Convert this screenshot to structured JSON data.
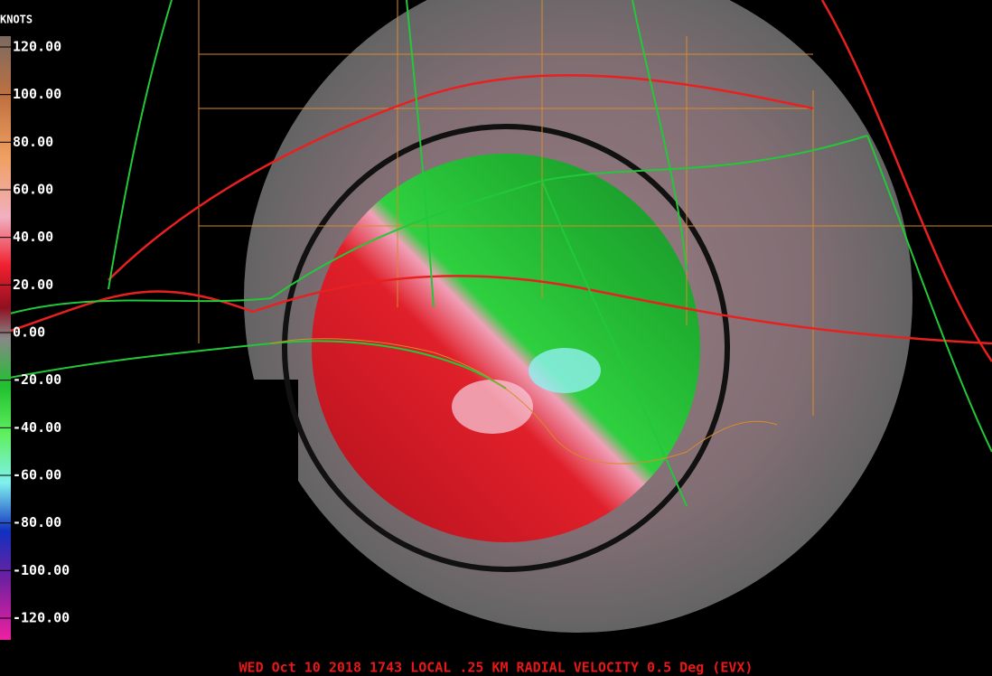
{
  "legend": {
    "unit": "KNOTS",
    "ticks": [
      {
        "value": 120,
        "label": "120.00"
      },
      {
        "value": 100,
        "label": "100.00"
      },
      {
        "value": 80,
        "label": "80.00"
      },
      {
        "value": 60,
        "label": "60.00"
      },
      {
        "value": 40,
        "label": "40.00"
      },
      {
        "value": 20,
        "label": "20.00"
      },
      {
        "value": 0,
        "label": "0.00"
      },
      {
        "value": -20,
        "label": "-20.00"
      },
      {
        "value": -40,
        "label": "-40.00"
      },
      {
        "value": -60,
        "label": "-60.00"
      },
      {
        "value": -80,
        "label": "-80.00"
      },
      {
        "value": -100,
        "label": "-100.00"
      },
      {
        "value": -120,
        "label": "-120.00"
      }
    ],
    "range": [
      -120,
      120
    ]
  },
  "caption": "WED Oct 10 2018 1743 LOCAL .25 KM RADIAL VELOCITY 0.5 Deg (EVX)"
}
